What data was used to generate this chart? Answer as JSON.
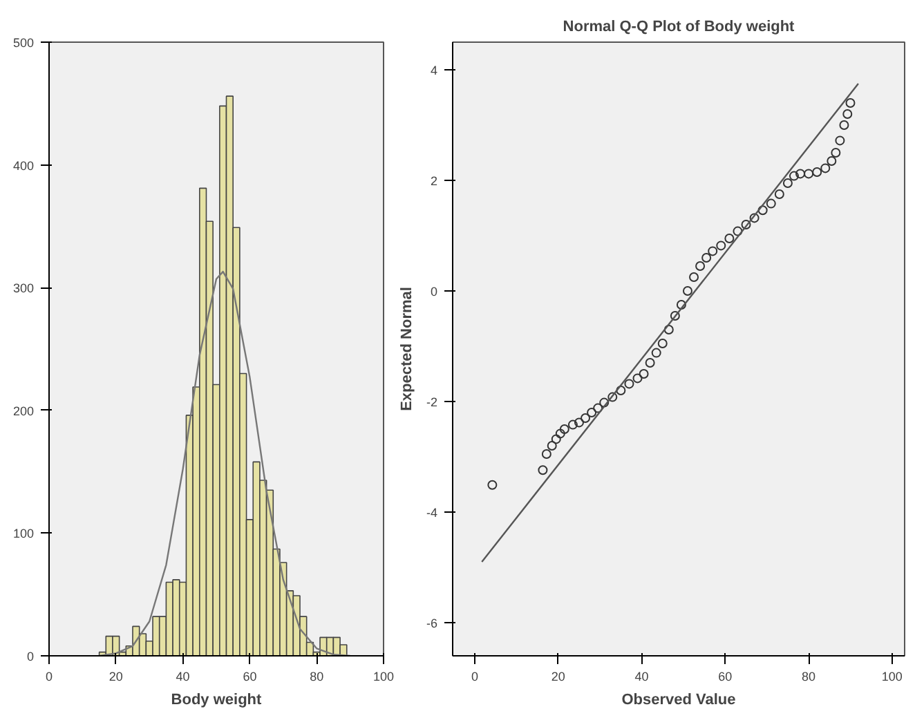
{
  "chart_data": [
    {
      "type": "histogram",
      "xlabel": "Body weight",
      "xlim": [
        0,
        100
      ],
      "ylim": [
        0,
        500
      ],
      "xticks": [
        0,
        20,
        40,
        60,
        80,
        100
      ],
      "yticks": [
        0,
        100,
        200,
        300,
        400,
        500
      ],
      "grid": false,
      "series": [
        {
          "color": "#e6e2a4",
          "bins": [
            15,
            17,
            19,
            21,
            23,
            25,
            27,
            29,
            31,
            33,
            35,
            37,
            39,
            41,
            43,
            45,
            47,
            49,
            51,
            53,
            55,
            57,
            59,
            61,
            63,
            65,
            67,
            69,
            71,
            73,
            75,
            77,
            79,
            81,
            83,
            85,
            87,
            89
          ],
          "values": [
            3,
            16,
            16,
            3,
            8,
            24,
            18,
            12,
            32,
            32,
            60,
            62,
            60,
            196,
            219,
            381,
            354,
            221,
            448,
            456,
            349,
            230,
            111,
            158,
            143,
            135,
            87,
            76,
            53,
            49,
            32,
            11,
            3,
            15,
            15,
            15,
            9
          ]
        },
        {
          "type": "line",
          "color": "#777777",
          "x": [
            15,
            20,
            25,
            30,
            35,
            40,
            45,
            50,
            52,
            55,
            60,
            65,
            70,
            75,
            80,
            85,
            90
          ],
          "values": [
            0,
            2,
            8,
            28,
            74,
            152,
            245,
            307,
            313,
            299,
            227,
            134,
            62,
            22,
            6,
            1,
            0
          ]
        }
      ]
    },
    {
      "type": "scatter",
      "title": "Normal Q-Q Plot of Body weight",
      "xlabel": "Observed Value",
      "ylabel": "Expected Normal",
      "xlim": [
        -5.3,
        103
      ],
      "ylim": [
        -6.6,
        4.5
      ],
      "xticks": [
        0,
        20,
        40,
        60,
        80,
        100
      ],
      "yticks": [
        -6,
        -4,
        -2,
        0,
        2,
        4
      ],
      "grid": false,
      "series": [
        {
          "color": "#333333",
          "marker": "circle",
          "x": [
            4.2,
            16.3,
            17.2,
            18.5,
            19.5,
            20.5,
            21.5,
            23.5,
            25,
            26.5,
            28,
            29.5,
            31,
            33,
            35,
            37,
            39,
            40.5,
            42,
            43.5,
            45,
            46.5,
            48,
            49.5,
            51,
            52.5,
            54,
            55.5,
            57,
            59,
            61,
            63,
            65,
            67,
            69,
            71,
            73,
            75,
            76.5,
            78,
            80,
            82,
            84,
            85.5,
            86.5,
            87.5,
            88.5,
            89.3,
            90
          ],
          "values": [
            -3.51,
            -3.24,
            -2.95,
            -2.8,
            -2.68,
            -2.58,
            -2.5,
            -2.42,
            -2.38,
            -2.3,
            -2.2,
            -2.12,
            -2.02,
            -1.92,
            -1.8,
            -1.68,
            -1.58,
            -1.5,
            -1.3,
            -1.12,
            -0.95,
            -0.7,
            -0.45,
            -0.25,
            0.0,
            0.25,
            0.45,
            0.6,
            0.72,
            0.82,
            0.95,
            1.08,
            1.2,
            1.32,
            1.46,
            1.58,
            1.75,
            1.95,
            2.08,
            2.12,
            2.12,
            2.15,
            2.22,
            2.35,
            2.5,
            2.72,
            3.0,
            3.2,
            3.4
          ]
        },
        {
          "type": "line",
          "color": "#555555",
          "x": [
            1.7,
            91.9
          ],
          "values": [
            -4.9,
            3.75
          ]
        }
      ]
    }
  ]
}
